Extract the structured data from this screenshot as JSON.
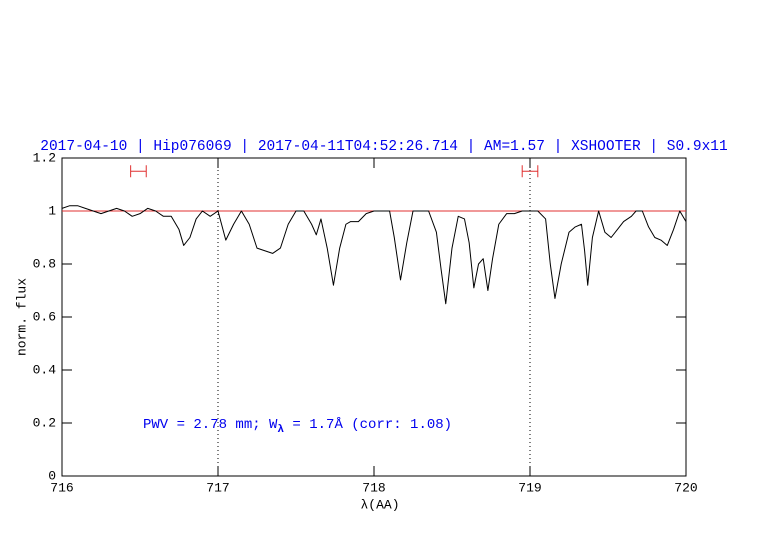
{
  "chart_data": {
    "type": "line",
    "title": "2017-04-10 | Hip076069 | 2017-04-11T04:52:26.714 | AM=1.57 | XSHOOTER | S0.9x11",
    "xlabel": "λ(AA)",
    "ylabel": "norm. flux",
    "annotation": [
      "PWV = 2.78 mm; W",
      "λ",
      " = 1.7Å (corr: 1.08)"
    ],
    "xlim": [
      716,
      720
    ],
    "ylim": [
      0,
      1.2
    ],
    "xticks": [
      716,
      717,
      718,
      719,
      720
    ],
    "yticks": [
      0,
      0.2,
      0.4,
      0.6,
      0.8,
      1,
      1.2
    ],
    "vlines": [
      717,
      719
    ],
    "hline": 1,
    "markers": [
      {
        "x": [
          716.44,
          716.54
        ],
        "y": 1.15
      },
      {
        "x": [
          718.95,
          719.05
        ],
        "y": 1.15
      }
    ],
    "series": [
      {
        "color": "#000000",
        "x": [
          716.0,
          716.05,
          716.1,
          716.15,
          716.2,
          716.25,
          716.3,
          716.35,
          716.4,
          716.45,
          716.5,
          716.55,
          716.6,
          716.65,
          716.7,
          716.75,
          716.78,
          716.82,
          716.86,
          716.9,
          716.95,
          717.0,
          717.05,
          717.1,
          717.15,
          717.2,
          717.25,
          717.3,
          717.35,
          717.4,
          717.45,
          717.5,
          717.55,
          717.6,
          717.63,
          717.66,
          717.7,
          717.74,
          717.78,
          717.82,
          717.85,
          717.9,
          717.95,
          718.0,
          718.05,
          718.1,
          718.13,
          718.17,
          718.21,
          718.25,
          718.3,
          718.35,
          718.4,
          718.43,
          718.46,
          718.5,
          718.54,
          718.58,
          718.61,
          718.64,
          718.67,
          718.7,
          718.73,
          718.76,
          718.8,
          718.85,
          718.9,
          718.95,
          719.0,
          719.05,
          719.1,
          719.13,
          719.16,
          719.2,
          719.25,
          719.29,
          719.33,
          719.35,
          719.37,
          719.4,
          719.44,
          719.48,
          719.52,
          719.56,
          719.6,
          719.65,
          719.68,
          719.72,
          719.76,
          719.8,
          719.84,
          719.88,
          719.92,
          719.96,
          720.0
        ],
        "values": [
          1.01,
          1.02,
          1.02,
          1.01,
          1.0,
          0.99,
          1.0,
          1.01,
          1.0,
          0.98,
          0.99,
          1.01,
          1.0,
          0.98,
          0.98,
          0.93,
          0.87,
          0.9,
          0.97,
          1.0,
          0.98,
          1.0,
          0.89,
          0.95,
          1.0,
          0.95,
          0.86,
          0.85,
          0.84,
          0.86,
          0.95,
          1.0,
          1.0,
          0.95,
          0.91,
          0.97,
          0.86,
          0.72,
          0.86,
          0.95,
          0.96,
          0.96,
          0.99,
          1.0,
          1.0,
          1.0,
          0.9,
          0.74,
          0.88,
          1.0,
          1.0,
          1.0,
          0.92,
          0.78,
          0.65,
          0.86,
          0.98,
          0.97,
          0.88,
          0.71,
          0.8,
          0.82,
          0.7,
          0.82,
          0.95,
          0.99,
          0.99,
          1.0,
          1.0,
          1.0,
          0.97,
          0.8,
          0.67,
          0.8,
          0.92,
          0.94,
          0.95,
          0.85,
          0.72,
          0.9,
          1.0,
          0.92,
          0.9,
          0.93,
          0.96,
          0.98,
          1.0,
          1.0,
          0.94,
          0.9,
          0.89,
          0.87,
          0.93,
          1.0,
          0.96
        ]
      }
    ]
  }
}
